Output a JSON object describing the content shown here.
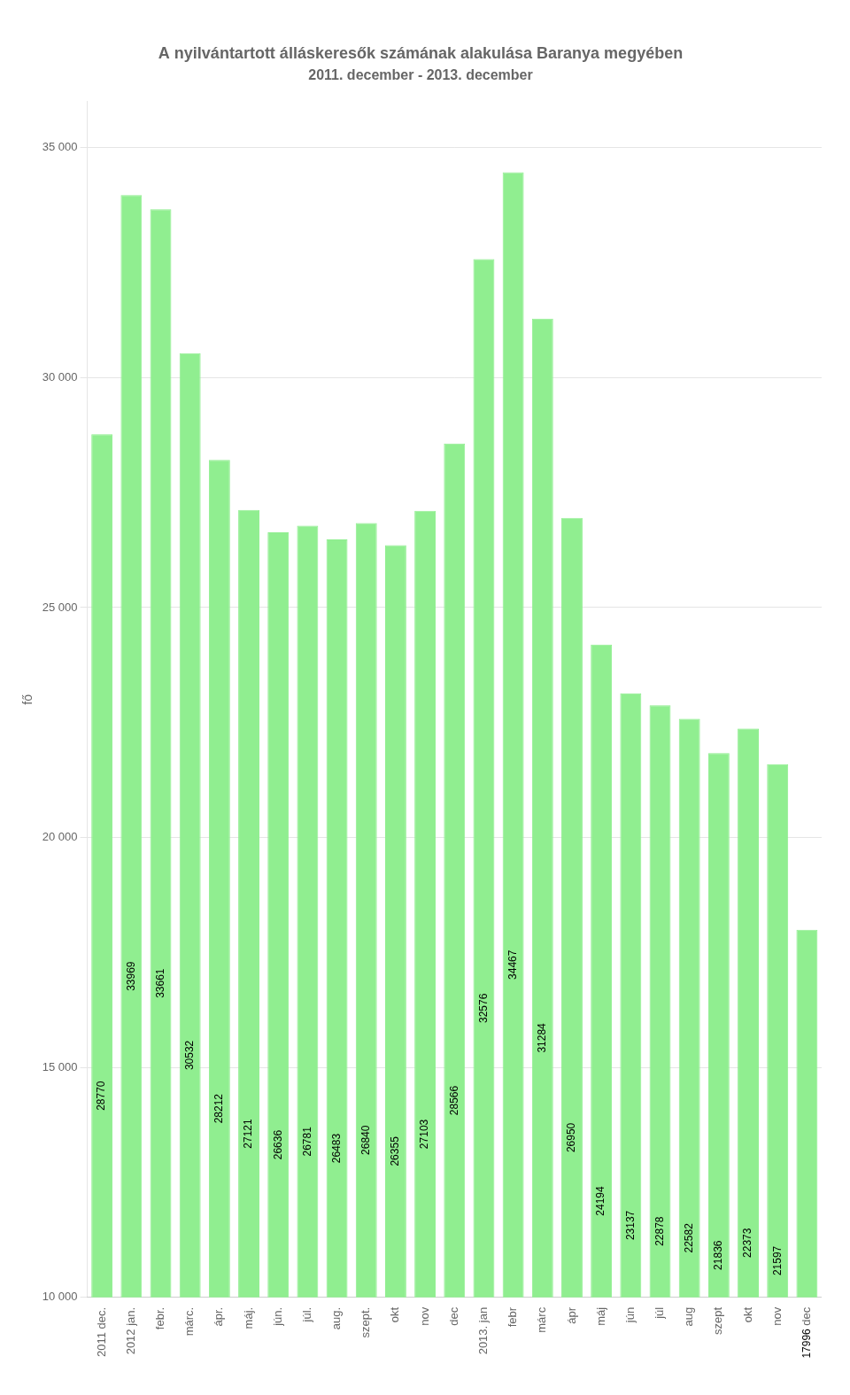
{
  "chart_data": {
    "type": "bar",
    "title": "A nyilvántartott álláskeresők számának alakulása Baranya megyében",
    "subtitle": "2011. december - 2013. december",
    "y_label": "fő",
    "categories": [
      "2011 dec.",
      "2012 jan.",
      "febr.",
      "márc.",
      "ápr.",
      "máj.",
      "jún.",
      "júl.",
      "aug.",
      "szept.",
      "okt",
      "nov",
      "dec",
      "2013. jan",
      "febr",
      "márc",
      "ápr",
      "máj",
      "jún",
      "júl",
      "aug",
      "szept",
      "okt",
      "nov",
      "dec"
    ],
    "values": [
      28770,
      33969,
      33661,
      30532,
      28212,
      27121,
      26636,
      26781,
      26483,
      26840,
      26355,
      27103,
      28566,
      32576,
      34467,
      31284,
      26950,
      24194,
      23137,
      22878,
      22582,
      21836,
      22373,
      21597,
      17996
    ],
    "color": "#90EE90",
    "ylim": [
      10000,
      36000
    ],
    "yticks": [
      {
        "value": 10000,
        "label": "10 000"
      },
      {
        "value": 15000,
        "label": "15 000"
      },
      {
        "value": 20000,
        "label": "20 000"
      },
      {
        "value": 25000,
        "label": "25 000"
      },
      {
        "value": 30000,
        "label": "30 000"
      },
      {
        "value": 35000,
        "label": "35 000"
      }
    ],
    "grid": true,
    "data_labels": true
  }
}
